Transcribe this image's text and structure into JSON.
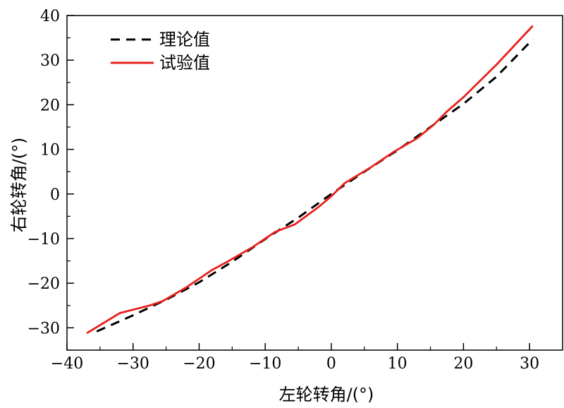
{
  "chart_data": {
    "type": "line",
    "xlabel": "左轮转角/(°)",
    "ylabel": "右轮转角/(°)",
    "xlim": [
      -40,
      35
    ],
    "ylim": [
      -35,
      40
    ],
    "x_ticks": [
      -40,
      -30,
      -20,
      -10,
      0,
      10,
      20,
      30
    ],
    "x_tick_labels": [
      "−40",
      "−30",
      "−20",
      "−10",
      "0",
      "10",
      "20",
      "30"
    ],
    "y_ticks": [
      -30,
      -20,
      -10,
      0,
      10,
      20,
      30,
      40
    ],
    "y_tick_labels": [
      "−30",
      "−20",
      "−10",
      "0",
      "10",
      "20",
      "30",
      "40"
    ],
    "grid": false,
    "legend_position": "top-left",
    "series": [
      {
        "name": "理论值",
        "style": "dashed",
        "color": "#000000",
        "points": [
          [
            -35.5,
            -30.8
          ],
          [
            -30,
            -27.2
          ],
          [
            -25,
            -23.7
          ],
          [
            -20,
            -19.8
          ],
          [
            -15,
            -15.2
          ],
          [
            -10,
            -10.1
          ],
          [
            -5,
            -5.3
          ],
          [
            0,
            0
          ],
          [
            5,
            5.0
          ],
          [
            10,
            9.8
          ],
          [
            15,
            15.0
          ],
          [
            20,
            20.2
          ],
          [
            25,
            26.3
          ],
          [
            30.5,
            34.7
          ]
        ]
      },
      {
        "name": "试验值",
        "style": "solid",
        "color": "#e8201c",
        "points": [
          [
            -37,
            -31.2
          ],
          [
            -32,
            -26.7
          ],
          [
            -27.5,
            -25.0
          ],
          [
            -25.5,
            -24.0
          ],
          [
            -22,
            -21.0
          ],
          [
            -18,
            -17.0
          ],
          [
            -15.5,
            -15.0
          ],
          [
            -12,
            -12.0
          ],
          [
            -8.5,
            -8.5
          ],
          [
            -5.5,
            -6.8
          ],
          [
            -2,
            -3.0
          ],
          [
            0,
            -0.5
          ],
          [
            2,
            2.4
          ],
          [
            6,
            6.0
          ],
          [
            9.5,
            9.5
          ],
          [
            13,
            12.5
          ],
          [
            15.5,
            15.5
          ],
          [
            17.5,
            18.5
          ],
          [
            20,
            21.7
          ],
          [
            25,
            29.0
          ],
          [
            30.5,
            37.7
          ]
        ]
      }
    ]
  }
}
